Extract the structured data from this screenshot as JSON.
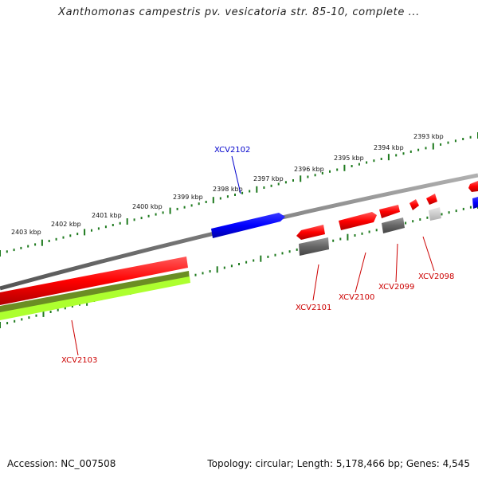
{
  "title": "Xanthomonas campestris pv. vesicatoria str. 85-10, complete ...",
  "footer": {
    "accession": "Accession: NC_007508",
    "summary": "Topology: circular; Length: 5,178,466 bp; Genes: 4,545"
  },
  "colors": {
    "backbone": "#8a8a8a",
    "tick": "#1e7a1e",
    "forward_gene": "#ff0000",
    "reverse_gene": "#0000ff",
    "gray_feature": "#666666",
    "light_gray_feature": "#c8c8c8",
    "olive_feature": "#6b8e23",
    "lime_feature": "#adff2f",
    "label_red": "#cc0000",
    "label_blue": "#0000cc"
  },
  "kbp_labels": [
    "2393 kbp",
    "2394 kbp",
    "2395 kbp",
    "2396 kbp",
    "2397 kbp",
    "2398 kbp",
    "2399 kbp",
    "2400 kbp",
    "2401 kbp",
    "2402 kbp",
    "2403 kbp"
  ],
  "genes": [
    {
      "name": "XCV2102",
      "color": "blue"
    },
    {
      "name": "XCV2103",
      "color": "red"
    },
    {
      "name": "XCV2101",
      "color": "red"
    },
    {
      "name": "XCV2100",
      "color": "red"
    },
    {
      "name": "XCV2099",
      "color": "red"
    },
    {
      "name": "XCV2098",
      "color": "red"
    }
  ]
}
